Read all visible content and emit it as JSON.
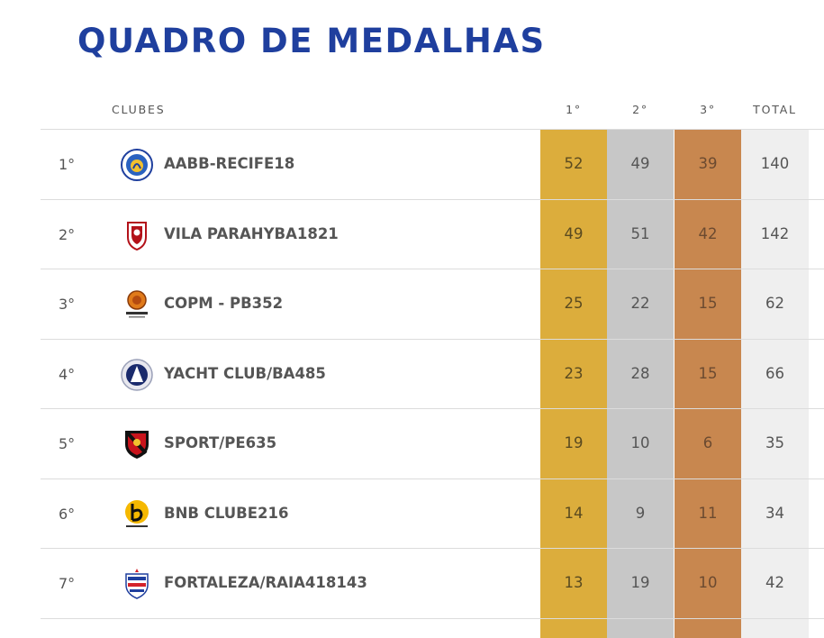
{
  "page": {
    "title": "QUADRO DE MEDALHAS"
  },
  "colors": {
    "title": "#1f3f9e",
    "gold_column": "#dcad3c",
    "silver_column": "#c7c7c7",
    "bronze_column": "#c8874f",
    "total_column": "#efefef",
    "divider": "#dcdcdc",
    "text": "#555555"
  },
  "table": {
    "headers": {
      "clubs": "CLUBES",
      "first": "1°",
      "second": "2°",
      "third": "3°",
      "total": "TOTAL"
    },
    "rows": [
      {
        "rank": "1°",
        "club": "AABB-RECIFE18",
        "logo_icon": "aabb-recife-logo-icon",
        "first": "52",
        "second": "49",
        "third": "39",
        "total": "140"
      },
      {
        "rank": "2°",
        "club": "VILA PARAHYBA1821",
        "logo_icon": "vila-parahyba-logo-icon",
        "first": "49",
        "second": "51",
        "third": "42",
        "total": "142"
      },
      {
        "rank": "3°",
        "club": "COPM - PB352",
        "logo_icon": "copm-pb-logo-icon",
        "first": "25",
        "second": "22",
        "third": "15",
        "total": "62"
      },
      {
        "rank": "4°",
        "club": "YACHT CLUB/BA485",
        "logo_icon": "yacht-club-ba-logo-icon",
        "first": "23",
        "second": "28",
        "third": "15",
        "total": "66"
      },
      {
        "rank": "5°",
        "club": "SPORT/PE635",
        "logo_icon": "sport-pe-logo-icon",
        "first": "19",
        "second": "10",
        "third": "6",
        "total": "35"
      },
      {
        "rank": "6°",
        "club": "BNB CLUBE216",
        "logo_icon": "bnb-clube-logo-icon",
        "first": "14",
        "second": "9",
        "third": "11",
        "total": "34"
      },
      {
        "rank": "7°",
        "club": "FORTALEZA/RAIA418143",
        "logo_icon": "fortaleza-raia-logo-icon",
        "first": "13",
        "second": "19",
        "third": "10",
        "total": "42"
      }
    ]
  }
}
